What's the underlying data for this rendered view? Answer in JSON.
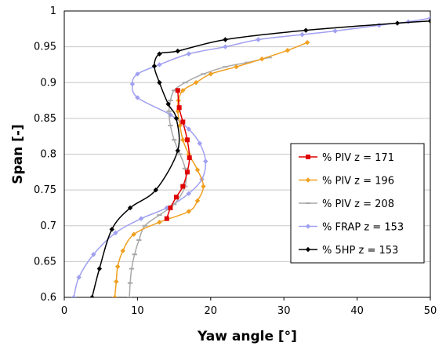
{
  "chart_data": {
    "type": "line",
    "title": "",
    "xlabel": "Yaw angle [°]",
    "ylabel": "Span [-]",
    "xlim": [
      0,
      50
    ],
    "ylim": [
      0.6,
      1.0
    ],
    "xticks": [
      "0",
      "10",
      "20",
      "30",
      "40",
      "50"
    ],
    "yticks": [
      "0.6",
      "0.65",
      "0.7",
      "0.75",
      "0.8",
      "0.85",
      "0.9",
      "0.95",
      "1"
    ],
    "grid": "horizontal",
    "legend_position": "right",
    "series": [
      {
        "name": "% PIV z = 171",
        "color": "#e00000",
        "marker": "square",
        "x": [
          14.0,
          14.5,
          15.3,
          16.2,
          16.8,
          17.1,
          16.8,
          16.2,
          15.7,
          15.5
        ],
        "y": [
          0.71,
          0.725,
          0.74,
          0.755,
          0.775,
          0.795,
          0.82,
          0.845,
          0.865,
          0.889
        ]
      },
      {
        "name": "% PIV z = 196",
        "color": "#f0a020",
        "marker": "diamond",
        "x": [
          6.9,
          7.1,
          7.3,
          8.0,
          9.5,
          13.0,
          17.0,
          18.2,
          19.0,
          18.2,
          17.0,
          16.2,
          15.8,
          15.5,
          15.6,
          16.2,
          18.0,
          20.0,
          23.5,
          27.0,
          30.5,
          33.2
        ],
        "y": [
          0.6,
          0.622,
          0.643,
          0.665,
          0.688,
          0.705,
          0.72,
          0.735,
          0.755,
          0.778,
          0.8,
          0.82,
          0.84,
          0.86,
          0.875,
          0.889,
          0.9,
          0.912,
          0.922,
          0.933,
          0.945,
          0.956
        ]
      },
      {
        "name": "% PIV z = 208",
        "color": "#a8a8a8",
        "marker": "dash",
        "x": [
          8.9,
          9.0,
          9.2,
          9.6,
          10.2,
          11.0,
          13.0,
          15.0,
          16.5,
          16.5,
          15.8,
          15.0,
          14.5,
          14.3,
          14.5,
          15.0,
          16.5,
          19.0,
          22.0,
          25.0,
          28.0
        ],
        "y": [
          0.6,
          0.62,
          0.64,
          0.66,
          0.68,
          0.7,
          0.715,
          0.73,
          0.755,
          0.78,
          0.8,
          0.82,
          0.84,
          0.86,
          0.875,
          0.889,
          0.9,
          0.912,
          0.922,
          0.928,
          0.935
        ]
      },
      {
        "name": "% FRAP z = 153",
        "color": "#a0a0f0",
        "marker": "diamond",
        "x": [
          1.3,
          2.0,
          4.0,
          7.0,
          10.5,
          14.0,
          17.0,
          18.8,
          19.3,
          18.5,
          17.0,
          14.5,
          10.0,
          9.3,
          10.0,
          13.0,
          17.0,
          22.0,
          26.5,
          32.5,
          37.0,
          43.0,
          47.0,
          50.0
        ],
        "y": [
          0.6,
          0.628,
          0.66,
          0.69,
          0.71,
          0.725,
          0.745,
          0.765,
          0.79,
          0.815,
          0.835,
          0.855,
          0.879,
          0.898,
          0.912,
          0.925,
          0.94,
          0.95,
          0.96,
          0.967,
          0.972,
          0.98,
          0.985,
          0.99
        ]
      },
      {
        "name": "% 5HP z = 153",
        "color": "#000000",
        "marker": "diamond",
        "x": [
          3.8,
          4.8,
          6.5,
          9.0,
          12.5,
          15.5,
          15.3,
          14.2,
          13.0,
          12.3,
          13.0,
          15.5,
          22.0,
          33.0,
          45.5,
          50.0
        ],
        "y": [
          0.6,
          0.64,
          0.695,
          0.725,
          0.75,
          0.805,
          0.85,
          0.87,
          0.9,
          0.923,
          0.94,
          0.944,
          0.96,
          0.973,
          0.983,
          0.986
        ]
      }
    ]
  }
}
